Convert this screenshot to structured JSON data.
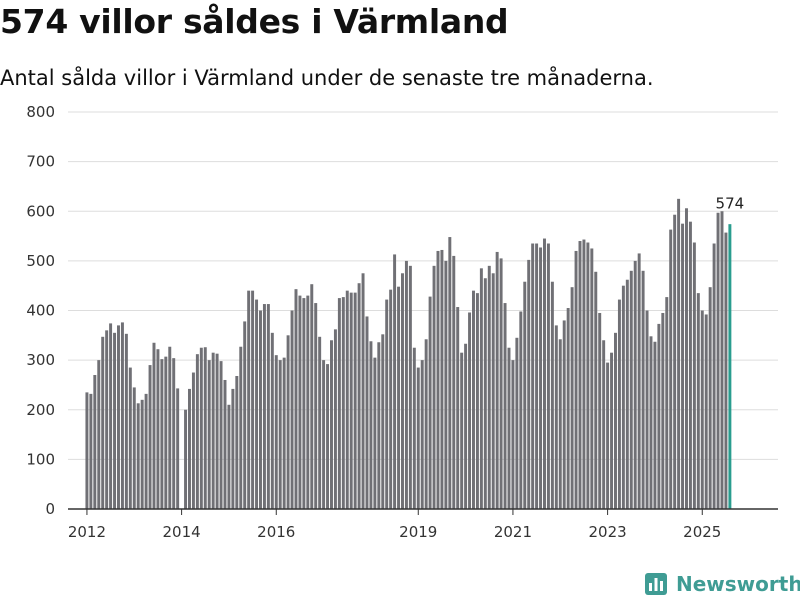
{
  "brand": {
    "name": "Newsworthy",
    "icon": "newsworthy-logo-icon",
    "color": "#3f9c94"
  },
  "colors": {
    "bar": "#707075",
    "highlight": "#2a9d8f",
    "grid": "#dddddd",
    "axis": "#333333"
  },
  "chart_data": {
    "type": "bar",
    "title": "574 villor såldes i Värmland",
    "subtitle": "Antal sålda villor i Värmland under de senaste tre månaderna.",
    "xlabel": "",
    "ylabel": "",
    "ylim": [
      0,
      800
    ],
    "yticks": [
      0,
      100,
      200,
      300,
      400,
      500,
      600,
      700,
      800
    ],
    "grid": true,
    "x_range": [
      2011.6,
      2026.6
    ],
    "xticks": [
      2012,
      2014,
      2016,
      2019,
      2021,
      2023,
      2025
    ],
    "start": "2012-01",
    "highlight_index": 163,
    "annotation": {
      "index": 163,
      "label": "574"
    },
    "values": [
      235,
      232,
      270,
      300,
      347,
      360,
      374,
      355,
      370,
      376,
      353,
      285,
      245,
      213,
      220,
      232,
      290,
      335,
      322,
      302,
      307,
      327,
      304,
      243,
      0,
      200,
      242,
      275,
      312,
      325,
      326,
      300,
      315,
      313,
      298,
      260,
      210,
      242,
      268,
      327,
      378,
      440,
      440,
      422,
      400,
      413,
      413,
      355,
      310,
      300,
      305,
      350,
      400,
      443,
      430,
      425,
      430,
      453,
      415,
      347,
      300,
      292,
      340,
      362,
      425,
      427,
      440,
      436,
      436,
      455,
      475,
      388,
      338,
      305,
      336,
      352,
      422,
      442,
      513,
      448,
      475,
      500,
      490,
      325,
      285,
      300,
      342,
      428,
      490,
      520,
      522,
      500,
      548,
      510,
      407,
      315,
      333,
      396,
      440,
      435,
      485,
      465,
      490,
      475,
      518,
      505,
      415,
      325,
      300,
      345,
      398,
      458,
      502,
      535,
      535,
      527,
      545,
      535,
      458,
      370,
      342,
      380,
      405,
      447,
      520,
      540,
      543,
      537,
      525,
      478,
      395,
      340,
      295,
      315,
      355,
      422,
      450,
      462,
      480,
      500,
      515,
      480,
      400,
      348,
      337,
      373,
      395,
      427,
      563,
      593,
      625,
      575,
      606,
      579,
      537,
      435,
      400,
      392,
      447,
      535,
      597,
      600,
      557,
      574
    ]
  }
}
